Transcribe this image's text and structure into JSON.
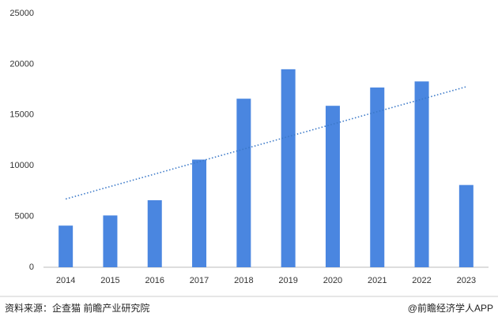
{
  "chart_data": {
    "type": "bar",
    "categories": [
      "2014",
      "2015",
      "2016",
      "2017",
      "2018",
      "2019",
      "2020",
      "2021",
      "2022",
      "2023"
    ],
    "values": [
      4100,
      5100,
      6600,
      10600,
      16600,
      19500,
      15900,
      17700,
      18300,
      8100
    ],
    "color": "#4a86e0",
    "ylim": [
      0,
      25000
    ],
    "yticks": [
      0,
      5000,
      10000,
      15000,
      20000,
      25000
    ],
    "grid": false,
    "trendline": true,
    "trendline_color": "#3a78c8"
  },
  "footer": {
    "source": "资料来源：企查猫 前瞻产业研究院",
    "brand": "@前瞻经济学人APP"
  }
}
